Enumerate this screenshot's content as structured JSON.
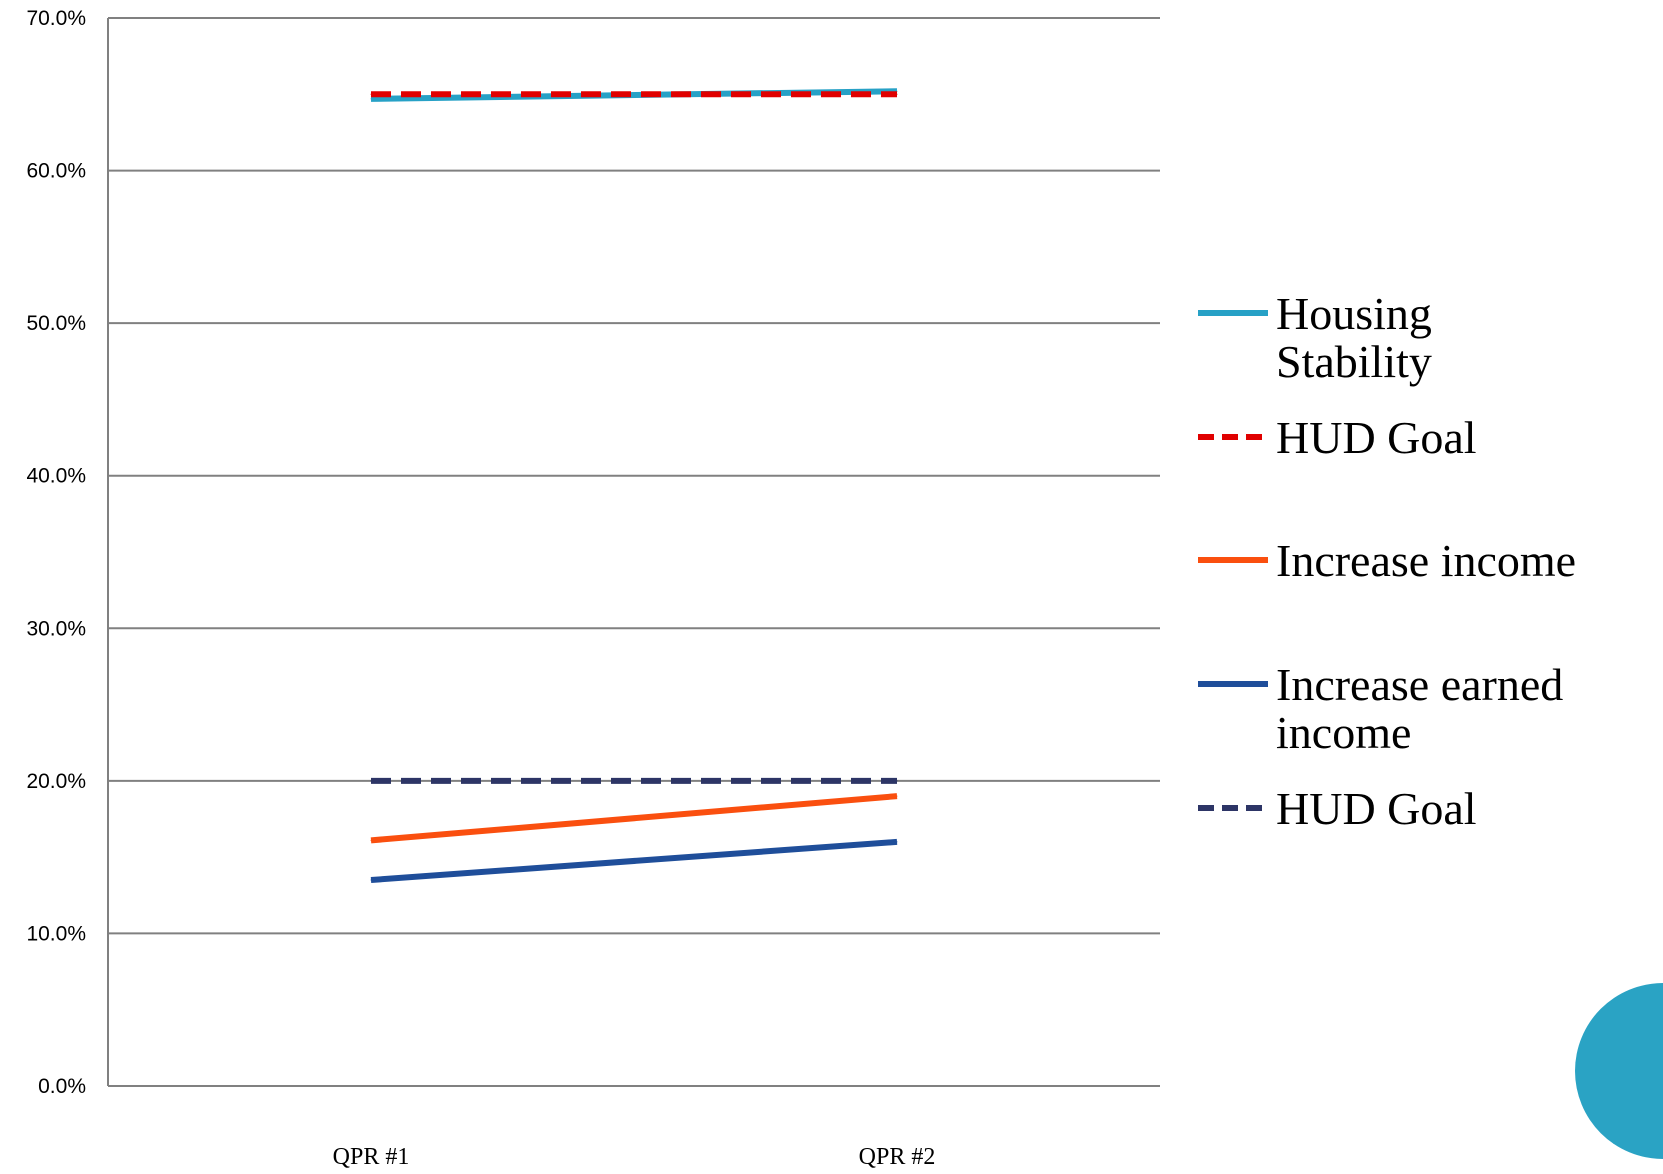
{
  "chart_data": {
    "type": "line",
    "title": "",
    "xlabel": "",
    "ylabel": "",
    "categories": [
      "QPR #1",
      "QPR #2"
    ],
    "ylim": [
      0,
      70
    ],
    "yticks": [
      "0.0%",
      "10.0%",
      "20.0%",
      "30.0%",
      "40.0%",
      "50.0%",
      "60.0%",
      "70.0%"
    ],
    "grid": true,
    "legend_position": "right",
    "series": [
      {
        "name": "Housing Stability",
        "values": [
          64.7,
          65.2
        ],
        "color": "#27a1c6",
        "dash": "solid"
      },
      {
        "name": "HUD Goal",
        "values": [
          65.0,
          65.0
        ],
        "color": "#e00000",
        "dash": "dashed"
      },
      {
        "name": "Increase income",
        "values": [
          16.1,
          19.0
        ],
        "color": "#fa4f0f",
        "dash": "solid"
      },
      {
        "name": "Increase earned income",
        "values": [
          13.5,
          16.0
        ],
        "color": "#1f4e9a",
        "dash": "solid"
      },
      {
        "name": "HUD Goal",
        "values": [
          20.0,
          20.0
        ],
        "color": "#2d3566",
        "dash": "dashed"
      }
    ]
  },
  "decor": {
    "circle_color": "#2aa3c4"
  }
}
